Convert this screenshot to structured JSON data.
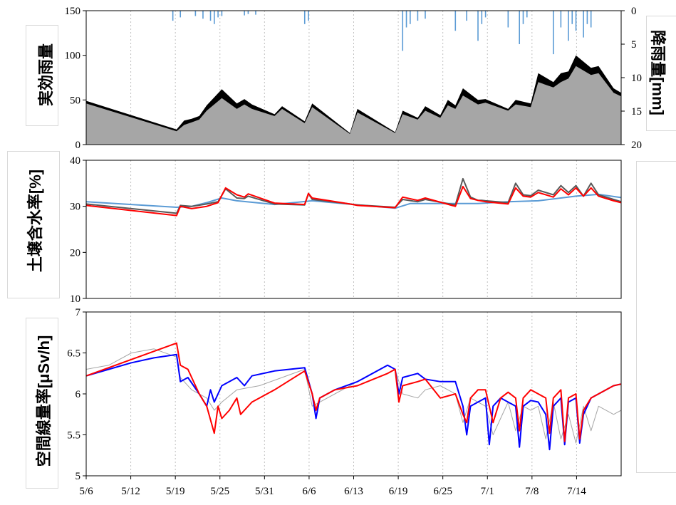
{
  "chart_data": [
    {
      "type": "area",
      "ylabel_left": "実効雨量",
      "ylabel_right": "降雨量[mm]",
      "ylim": [
        0,
        150
      ],
      "yticks": [
        0,
        50,
        100,
        150
      ],
      "y2lim": [
        20,
        0
      ],
      "y2ticks": [
        0,
        5,
        10,
        15,
        20
      ],
      "y2_inverted": true,
      "grid_x": "dotted",
      "series": [
        {
          "color": "#000000",
          "x": [
            0,
            12,
            13,
            14,
            15,
            16,
            18,
            20,
            21,
            22,
            25,
            26,
            29,
            30,
            35,
            36,
            41,
            42,
            44,
            45,
            47,
            48,
            49,
            50,
            52,
            53,
            56,
            57,
            59,
            60,
            62,
            63,
            64,
            65,
            67,
            68,
            70,
            71
          ],
          "values": [
            49,
            17,
            27,
            29,
            32,
            44,
            62,
            46,
            51,
            45,
            34,
            43,
            26,
            46,
            13,
            40,
            14,
            38,
            30,
            43,
            33,
            50,
            44,
            63,
            50,
            51,
            40,
            50,
            46,
            80,
            70,
            80,
            82,
            100,
            86,
            88,
            63,
            58
          ]
        },
        {
          "color": "#a6a6a6",
          "x": [
            0,
            12,
            13,
            14,
            15,
            16,
            18,
            20,
            21,
            22,
            25,
            26,
            29,
            30,
            35,
            36,
            41,
            42,
            44,
            45,
            47,
            48,
            49,
            50,
            52,
            53,
            56,
            57,
            59,
            60,
            62,
            63,
            64,
            65,
            67,
            68,
            70,
            71
          ],
          "values": [
            46,
            15,
            22,
            25,
            28,
            38,
            52,
            40,
            45,
            40,
            32,
            40,
            24,
            42,
            12,
            36,
            13,
            34,
            28,
            38,
            30,
            44,
            40,
            55,
            45,
            47,
            38,
            45,
            42,
            70,
            64,
            70,
            74,
            88,
            78,
            80,
            58,
            54
          ]
        },
        {
          "color": "#5b9bd5",
          "type": "bar",
          "axis": "right",
          "x": [
            11.5,
            12.5,
            14.5,
            15.5,
            16.5,
            17,
            17.5,
            18,
            21,
            21.5,
            22.5,
            29,
            29.5,
            42,
            42.5,
            43,
            44,
            45,
            49,
            50.5,
            52,
            52.5,
            53,
            56,
            57.5,
            58,
            58.5,
            62,
            63,
            64,
            64.5,
            65,
            66,
            66.5,
            67
          ],
          "values": [
            1.5,
            1,
            0.8,
            1.2,
            1.5,
            2,
            1,
            0.8,
            0.7,
            0.5,
            0.6,
            2,
            1.5,
            6,
            2.5,
            2,
            1.5,
            1.2,
            3,
            1.5,
            4.5,
            2,
            1,
            2.5,
            5,
            2,
            1,
            6.5,
            2.5,
            4.5,
            2,
            3,
            4,
            2,
            2.5
          ]
        }
      ]
    },
    {
      "type": "line",
      "ylabel": "土壌含水率[%]",
      "ylim": [
        10,
        40
      ],
      "yticks": [
        10,
        20,
        30,
        40
      ],
      "grid_x": "dotted",
      "series": [
        {
          "color": "#5b9bd5",
          "x": [
            0,
            12,
            14,
            16,
            18,
            20,
            25,
            30,
            41,
            43,
            52,
            56,
            60,
            65,
            68,
            71
          ],
          "values": [
            31,
            29.8,
            30,
            30.8,
            31.8,
            31.2,
            30.4,
            31.2,
            29.6,
            30.6,
            30.6,
            31,
            31.2,
            32.2,
            32.6,
            31.9
          ]
        },
        {
          "color": "#595959",
          "x": [
            0,
            12,
            12.5,
            14,
            16,
            17.5,
            18.5,
            20,
            21,
            21.5,
            25,
            29,
            29.5,
            30,
            35,
            36,
            41,
            42,
            44,
            45,
            49,
            50,
            51,
            52,
            52.5,
            53,
            56,
            57,
            58,
            59,
            60,
            62,
            63,
            64,
            65,
            66,
            67,
            68,
            70,
            71
          ],
          "values": [
            30.5,
            28.5,
            30.2,
            30,
            30.5,
            31,
            33.8,
            31.8,
            31.7,
            32.2,
            30.5,
            30.3,
            32.8,
            31.5,
            30.5,
            30.3,
            29.8,
            31.5,
            31,
            31.5,
            30.3,
            36,
            32,
            31.3,
            31.3,
            31.2,
            30.8,
            35,
            32.5,
            32.3,
            33.5,
            32.5,
            34.5,
            33,
            34.5,
            32.2,
            35,
            32.5,
            31.5,
            31
          ]
        },
        {
          "color": "#ff0000",
          "x": [
            0,
            12,
            12.5,
            14,
            16,
            17.5,
            18.5,
            20,
            21,
            21.5,
            25,
            29,
            29.5,
            30,
            35,
            36,
            41,
            42,
            44,
            45,
            49,
            50,
            51,
            52,
            53,
            56,
            57,
            58,
            59,
            60,
            62,
            63,
            64,
            65,
            66,
            67,
            68,
            70,
            71
          ],
          "values": [
            30.2,
            28,
            30,
            29.5,
            30,
            30.8,
            34,
            32.5,
            32,
            32.7,
            30.7,
            30.4,
            32.8,
            31.8,
            30.5,
            30.2,
            29.7,
            32,
            31.3,
            31.8,
            30,
            34.3,
            31.7,
            31.3,
            31,
            30.5,
            34,
            32.2,
            32,
            33,
            32,
            33.8,
            32.5,
            34,
            32.2,
            34,
            32.2,
            31.2,
            30.8
          ]
        }
      ]
    },
    {
      "type": "line",
      "ylabel": "空間線量率[μSv/h]",
      "ylim": [
        5,
        7
      ],
      "yticks": [
        5,
        5.5,
        6,
        6.5,
        7
      ],
      "grid_x": "dotted",
      "xticks": [
        "5/6",
        "5/12",
        "5/19",
        "5/25",
        "5/31",
        "6/6",
        "6/13",
        "6/19",
        "6/25",
        "7/1",
        "7/8",
        "7/14"
      ],
      "series": [
        {
          "color": "#a6a6a6",
          "x": [
            0,
            3,
            6,
            9,
            12,
            12.5,
            14,
            16,
            17,
            18,
            20,
            23,
            26,
            29,
            30,
            33,
            36,
            40,
            41,
            42,
            44,
            45,
            47,
            49,
            50,
            51,
            53,
            54,
            56,
            57,
            58,
            59,
            60,
            61,
            62,
            63,
            64,
            65,
            66,
            67,
            68,
            70,
            71
          ],
          "values": [
            6.3,
            6.35,
            6.5,
            6.55,
            6.45,
            6.2,
            6.05,
            5.95,
            5.8,
            5.9,
            6.05,
            6.1,
            6.2,
            6.3,
            5.85,
            6.0,
            6.15,
            6.35,
            6.3,
            6.0,
            5.95,
            6.05,
            6.1,
            6.0,
            5.65,
            5.95,
            5.85,
            5.5,
            5.9,
            5.55,
            5.85,
            5.8,
            5.85,
            5.45,
            5.9,
            5.45,
            5.75,
            5.4,
            5.85,
            5.55,
            5.85,
            5.75,
            5.8
          ]
        },
        {
          "color": "#0000ff",
          "x": [
            0,
            3,
            6,
            9,
            12,
            12.5,
            13.5,
            15,
            16,
            16.5,
            17,
            18,
            19,
            20,
            21,
            22,
            25,
            29,
            30,
            30.5,
            31,
            33,
            36,
            40,
            41,
            41.5,
            42,
            44,
            45,
            47,
            49,
            50,
            50.5,
            51,
            52,
            53,
            53.5,
            54,
            55,
            56,
            57,
            57.5,
            58,
            59,
            60,
            61,
            61.5,
            62,
            63,
            63.5,
            64,
            65,
            65.5,
            66,
            67,
            68,
            70,
            71
          ],
          "values": [
            6.22,
            6.3,
            6.38,
            6.44,
            6.48,
            6.15,
            6.2,
            6.0,
            5.85,
            6.05,
            5.9,
            6.1,
            6.15,
            6.2,
            6.1,
            6.22,
            6.28,
            6.32,
            6.0,
            5.7,
            5.95,
            6.05,
            6.15,
            6.35,
            6.3,
            6.0,
            6.2,
            6.25,
            6.18,
            6.15,
            6.15,
            5.85,
            5.5,
            5.85,
            5.9,
            5.95,
            5.38,
            5.85,
            5.95,
            5.9,
            5.85,
            5.35,
            5.85,
            5.92,
            5.9,
            5.75,
            5.32,
            5.85,
            5.95,
            5.38,
            5.9,
            5.95,
            5.4,
            5.75,
            5.95,
            6.0,
            6.1,
            6.12
          ]
        },
        {
          "color": "#ff0000",
          "x": [
            0,
            12,
            12.5,
            13.5,
            15,
            16,
            17,
            17.5,
            18,
            19,
            20,
            20.5,
            22,
            23,
            25,
            29,
            30,
            30.5,
            31,
            33,
            36,
            40,
            41,
            41.5,
            42,
            44,
            45,
            47,
            49,
            50,
            50.5,
            51,
            52,
            53,
            54,
            55,
            56,
            57,
            57.5,
            58,
            59,
            60,
            61,
            61.5,
            62,
            63,
            63.5,
            64,
            65,
            65.5,
            66,
            67,
            68,
            70,
            71
          ],
          "values": [
            6.22,
            6.62,
            6.35,
            6.3,
            6.0,
            5.85,
            5.52,
            5.85,
            5.7,
            5.8,
            5.95,
            5.75,
            5.9,
            5.95,
            6.05,
            6.28,
            6.0,
            5.8,
            5.95,
            6.05,
            6.1,
            6.25,
            6.3,
            5.9,
            6.1,
            6.15,
            6.18,
            5.95,
            6.0,
            5.75,
            5.65,
            5.95,
            6.05,
            6.05,
            5.65,
            5.95,
            6.02,
            5.95,
            5.55,
            5.95,
            6.05,
            6.0,
            5.95,
            5.52,
            5.95,
            6.05,
            5.42,
            5.95,
            6.0,
            5.45,
            5.8,
            5.95,
            6.0,
            6.1,
            6.12
          ]
        }
      ]
    }
  ]
}
